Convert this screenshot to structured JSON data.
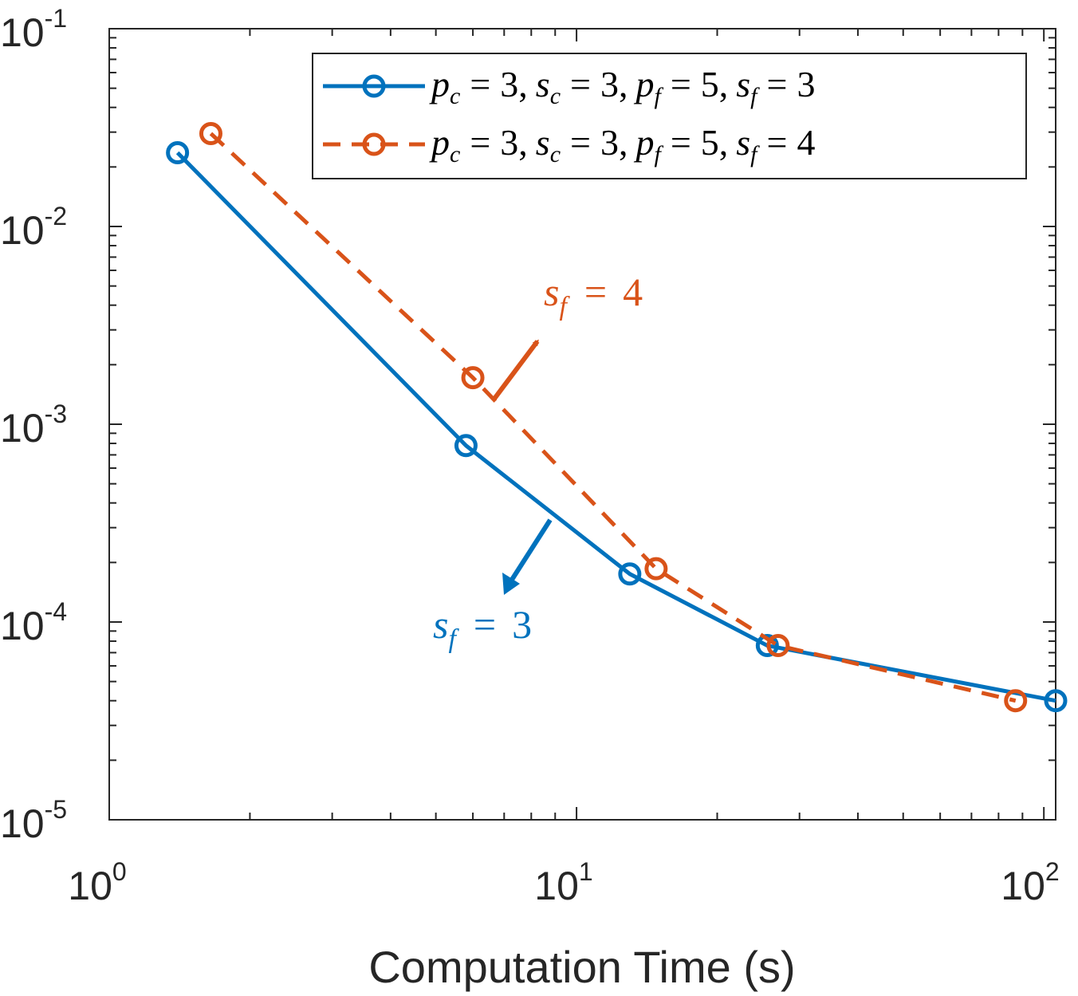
{
  "chart_data": {
    "type": "line",
    "title": "",
    "xlabel": "Computation Time (s)",
    "ylabel": "",
    "xscale": "log",
    "yscale": "log",
    "xlim": [
      1,
      106
    ],
    "ylim": [
      1e-05,
      0.1
    ],
    "grid": false,
    "legend_position": "top-right",
    "x_ticks": [
      {
        "base": "10",
        "exp": "0"
      },
      {
        "base": "10",
        "exp": "1"
      },
      {
        "base": "10",
        "exp": "2"
      }
    ],
    "y_ticks": [
      {
        "base": "10",
        "exp": "-1"
      },
      {
        "base": "10",
        "exp": "-2"
      },
      {
        "base": "10",
        "exp": "-3"
      },
      {
        "base": "10",
        "exp": "-4"
      },
      {
        "base": "10",
        "exp": "-5"
      }
    ],
    "series": [
      {
        "name": "p_c = 3, s_c = 3, p_f = 5, s_f = 3",
        "legend": {
          "p_c": "3",
          "s_c": "3",
          "p_f": "5",
          "s_f": "3"
        },
        "color": "#0072BD",
        "style": "solid",
        "marker": "circle",
        "x": [
          1.4,
          5.8,
          13.0,
          25.6,
          106
        ],
        "y": [
          0.0236,
          0.00078,
          0.000175,
          7.6e-05,
          4e-05
        ]
      },
      {
        "name": "p_c = 3, s_c = 3, p_f = 5, s_f = 4",
        "legend": {
          "p_c": "3",
          "s_c": "3",
          "p_f": "5",
          "s_f": "4"
        },
        "color": "#D95319",
        "style": "dashed",
        "marker": "circle",
        "x": [
          1.65,
          6.0,
          14.8,
          27.0,
          87
        ],
        "y": [
          0.0295,
          0.00172,
          0.000186,
          7.6e-05,
          4e-05
        ]
      }
    ],
    "annotations": [
      {
        "var": "s",
        "sub": "f",
        "value": "4",
        "color": "#D95319",
        "series": 1
      },
      {
        "var": "s",
        "sub": "f",
        "value": "3",
        "color": "#0072BD",
        "series": 0
      }
    ]
  }
}
